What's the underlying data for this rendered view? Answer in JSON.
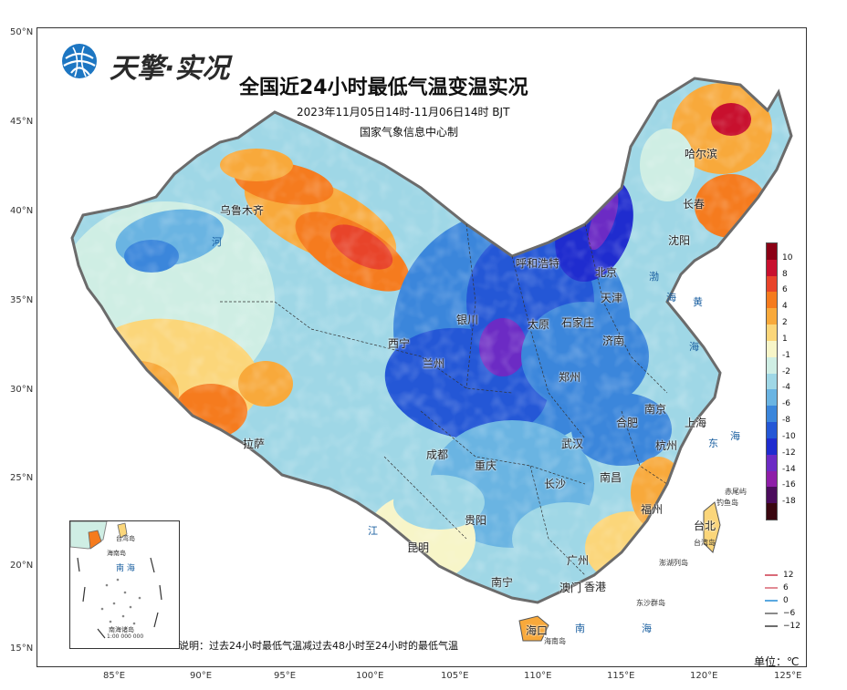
{
  "header": {
    "brand": "天擎·实况",
    "title": "全国近24小时最低气温变温实况",
    "time_range": "2023年11月05日14时-11月06日14时 BJT",
    "producer": "国家气象信息中心制"
  },
  "axes": {
    "lat_labels": [
      "50°N",
      "45°N",
      "40°N",
      "35°N",
      "30°N",
      "25°N",
      "20°N",
      "15°N"
    ],
    "lon_labels": [
      "85°E",
      "90°E",
      "95°E",
      "100°E",
      "105°E",
      "110°E",
      "115°E",
      "120°E",
      "125°E"
    ]
  },
  "legend": {
    "labels": [
      "10",
      "8",
      "6",
      "4",
      "2",
      "1",
      "-1",
      "-2",
      "-4",
      "-6",
      "-8",
      "-10",
      "-12",
      "-14",
      "-16",
      "-18"
    ],
    "colors": [
      "#8b0015",
      "#c8102e",
      "#e8442a",
      "#f57b1e",
      "#f8a93b",
      "#fbd67a",
      "#f7f5c8",
      "#cfeee4",
      "#9fd7e6",
      "#6ab4e2",
      "#3b86db",
      "#2457d6",
      "#1f2ccf",
      "#6c2bc4",
      "#8e1ea8",
      "#4b0c5c"
    ],
    "band_bottom_color": "#3a0710"
  },
  "contour_legend": [
    {
      "label": "12",
      "color": "#d96a78"
    },
    {
      "label": "6",
      "color": "#e28b95"
    },
    {
      "label": "0",
      "color": "#5aa8e0"
    },
    {
      "label": "−6",
      "color": "#8a8a8a"
    },
    {
      "label": "−12",
      "color": "#6d6d6d"
    }
  ],
  "cities": [
    {
      "name": "乌鲁木齐"
    },
    {
      "name": "哈尔滨"
    },
    {
      "name": "长春"
    },
    {
      "name": "沈阳"
    },
    {
      "name": "呼和浩特"
    },
    {
      "name": "北京"
    },
    {
      "name": "天津"
    },
    {
      "name": "银川"
    },
    {
      "name": "太原"
    },
    {
      "name": "石家庄"
    },
    {
      "name": "济南"
    },
    {
      "name": "西宁"
    },
    {
      "name": "兰州"
    },
    {
      "name": "郑州"
    },
    {
      "name": "南京"
    },
    {
      "name": "上海"
    },
    {
      "name": "合肥"
    },
    {
      "name": "杭州"
    },
    {
      "name": "武汉"
    },
    {
      "name": "拉萨"
    },
    {
      "name": "成都"
    },
    {
      "name": "重庆"
    },
    {
      "name": "长沙"
    },
    {
      "name": "南昌"
    },
    {
      "name": "福州"
    },
    {
      "name": "台北"
    },
    {
      "name": "贵阳"
    },
    {
      "name": "昆明"
    },
    {
      "name": "广州"
    },
    {
      "name": "南宁"
    },
    {
      "name": "澳门"
    },
    {
      "name": "香港"
    },
    {
      "name": "海口"
    }
  ],
  "seas": [
    {
      "name": "渤"
    },
    {
      "name": "海"
    },
    {
      "name": "黄"
    },
    {
      "name": "海"
    },
    {
      "name": "东"
    },
    {
      "name": "海"
    },
    {
      "name": "南"
    },
    {
      "name": "海"
    },
    {
      "name": "河"
    },
    {
      "name": "江"
    }
  ],
  "islands": [
    {
      "name": "赤尾屿"
    },
    {
      "name": "钓鱼岛"
    },
    {
      "name": "台湾岛"
    },
    {
      "name": "澎湖列岛"
    },
    {
      "name": "东沙群岛"
    },
    {
      "name": "海南岛"
    }
  ],
  "inset": {
    "labels": [
      "台湾岛",
      "海南岛",
      "南 海",
      "南海诸岛",
      "1:00 000 000"
    ]
  },
  "note": "说明：过去24小时最低气温减过去48小时至24小时的最低气温",
  "unit": "单位：℃"
}
